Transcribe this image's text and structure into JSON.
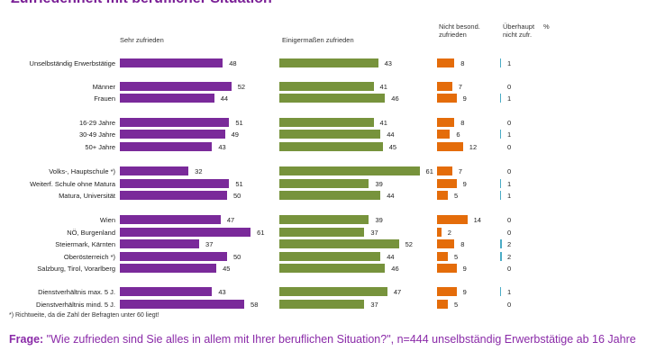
{
  "title": "Zufriedenheit mit beruflicher Situation",
  "chart_data": {
    "type": "bar",
    "orientation": "horizontal",
    "series": [
      {
        "name": "Sehr zufrieden",
        "color": "#7a2a9a",
        "values": [
          48,
          52,
          44,
          51,
          49,
          43,
          32,
          51,
          50,
          47,
          61,
          37,
          50,
          45,
          43,
          58
        ]
      },
      {
        "name": "Einigermaßen zufrieden",
        "color": "#77933c",
        "values": [
          43,
          41,
          46,
          41,
          44,
          45,
          61,
          39,
          44,
          39,
          37,
          52,
          44,
          46,
          47,
          37
        ]
      },
      {
        "name": "Nicht besond. zufrieden",
        "color": "#e46c0a",
        "values": [
          8,
          7,
          9,
          8,
          6,
          12,
          7,
          9,
          5,
          14,
          2,
          8,
          5,
          9,
          9,
          5
        ]
      },
      {
        "name": "Überhaupt nicht zufr.",
        "color": "#4bacc6",
        "values": [
          1,
          0,
          1,
          0,
          1,
          0,
          0,
          1,
          1,
          0,
          0,
          2,
          2,
          0,
          1,
          0
        ]
      }
    ],
    "percent_label": "%",
    "categories": [
      "Unselbständig Erwerbstätige",
      "Männer",
      "Frauen",
      "16-29 Jahre",
      "30-49 Jahre",
      "50+ Jahre",
      "Volks-, Hauptschule *)",
      "Weiterf. Schule ohne Matura",
      "Matura, Universität",
      "Wien",
      "NÖ, Burgenland",
      "Steiermark, Kärnten",
      "Oberösterreich *)",
      "Salzburg, Tirol, Vorarlberg",
      "Dienstverhältnis max. 5 J.",
      "Dienstverhältnis mind. 5 J."
    ]
  },
  "footnote": "*) Richtweite, da die Zahl der Befragten unter 60 liegt!",
  "question": {
    "label": "Frage:",
    "text": " \"Wie zufrieden sind Sie alles in allem mit Ihrer beruflichen Situation?\", n=444 unselbständig Erwerbstätige ab 16 Jahre"
  }
}
